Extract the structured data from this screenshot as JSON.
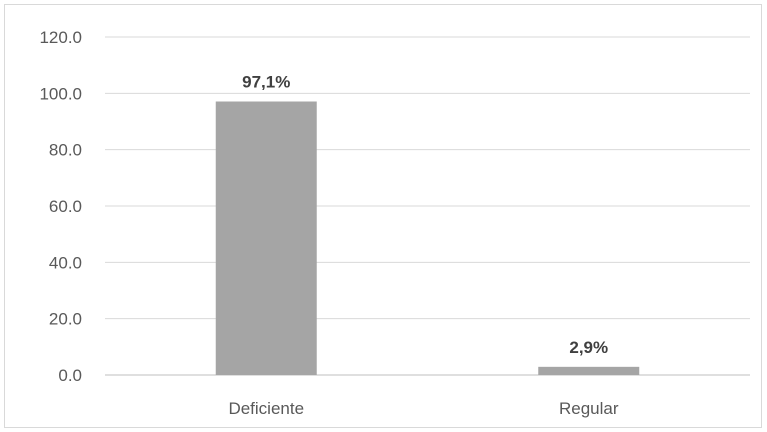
{
  "chart_data": {
    "type": "bar",
    "categories": [
      "Deficiente",
      "Regular"
    ],
    "values": [
      97.1,
      2.9
    ],
    "data_labels": [
      "97,1%",
      "2,9%"
    ],
    "title": "",
    "xlabel": "",
    "ylabel": "",
    "ylim": [
      0,
      120
    ],
    "yticks": [
      0,
      20,
      40,
      60,
      80,
      100,
      120
    ],
    "ytick_labels": [
      "0.0",
      "20.0",
      "40.0",
      "60.0",
      "80.0",
      "100.0",
      "120.0"
    ],
    "grid": true,
    "legend": "none",
    "colors": {
      "bar": "#a5a5a5",
      "grid": "#d9d9d9",
      "axis": "#bfbfbf"
    }
  }
}
